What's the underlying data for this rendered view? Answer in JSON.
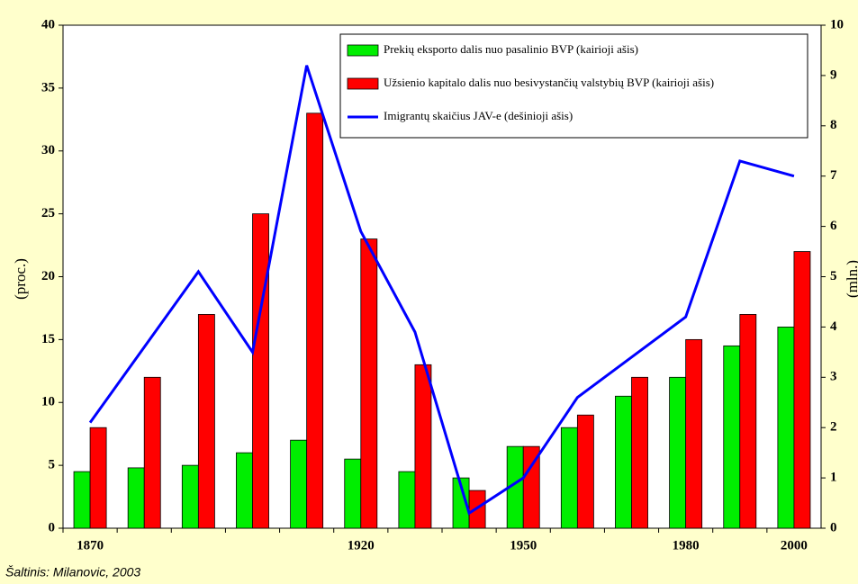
{
  "chart_data": {
    "type": "bar",
    "categories": [
      "1870",
      null,
      null,
      null,
      null,
      "1920",
      null,
      null,
      "1950",
      null,
      null,
      "1980",
      null,
      "2000"
    ],
    "series": [
      {
        "name": "Prekių eksporto dalis nuo pasalinio BVP (kairioji ašis)",
        "color": "#00ee00",
        "type": "bar",
        "values": [
          4.5,
          4.8,
          5,
          6,
          7,
          5.5,
          4.5,
          4,
          6.5,
          8,
          10.5,
          12,
          14.5,
          16
        ]
      },
      {
        "name": "Užsienio kapitalo dalis nuo besivystančių valstybių BVP (kairioji ašis)",
        "color": "#ff0000",
        "type": "bar",
        "values": [
          8,
          12,
          17,
          25,
          33,
          23,
          13,
          3,
          6.5,
          9,
          12,
          15,
          17,
          22
        ]
      },
      {
        "name": "Imigrantų skaičius JAV-e (dešinioji ašis)",
        "color": "#0000ff",
        "type": "line",
        "axis": "y2",
        "values": [
          2.1,
          3.6,
          5.1,
          3.5,
          9.2,
          5.9,
          3.9,
          0.3,
          1.0,
          2.6,
          3.4,
          4.2,
          7.3,
          7.0
        ]
      }
    ],
    "ylabel": "(proc.)",
    "y2label": "(mln.)",
    "ylim": [
      0,
      40
    ],
    "yticks": [
      0,
      5,
      10,
      15,
      20,
      25,
      30,
      35,
      40
    ],
    "y2lim": [
      0,
      10
    ],
    "y2ticks": [
      0,
      1,
      2,
      3,
      4,
      5,
      6,
      7,
      8,
      9,
      10
    ],
    "legend": "top-right",
    "source": "Šaltinis: Milanovic, 2003"
  }
}
